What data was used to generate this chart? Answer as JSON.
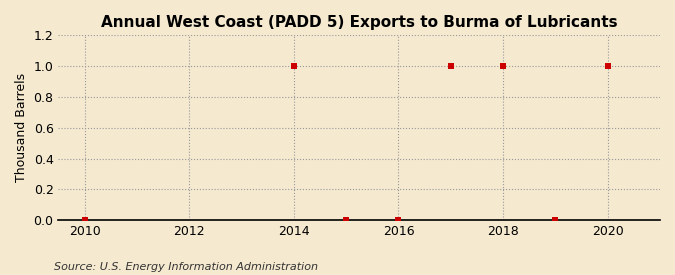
{
  "title": "Annual West Coast (PADD 5) Exports to Burma of Lubricants",
  "ylabel": "Thousand Barrels",
  "source": "Source: U.S. Energy Information Administration",
  "background_color": "#f5e9d0",
  "plot_bg_color": "#f5e9d0",
  "data_points": [
    {
      "year": 2010,
      "value": 0.0
    },
    {
      "year": 2014,
      "value": 1.0
    },
    {
      "year": 2015,
      "value": 0.0
    },
    {
      "year": 2016,
      "value": 0.0
    },
    {
      "year": 2017,
      "value": 1.0
    },
    {
      "year": 2018,
      "value": 1.0
    },
    {
      "year": 2019,
      "value": 0.0
    },
    {
      "year": 2020,
      "value": 1.0
    }
  ],
  "marker_color": "#cc0000",
  "marker_size": 4,
  "xlim": [
    2009.5,
    2021.0
  ],
  "ylim": [
    0.0,
    1.2
  ],
  "xticks": [
    2010,
    2012,
    2014,
    2016,
    2018,
    2020
  ],
  "yticks": [
    0.0,
    0.2,
    0.4,
    0.6,
    0.8,
    1.0,
    1.2
  ],
  "grid_color": "#999999",
  "grid_style": ":",
  "title_fontsize": 11,
  "label_fontsize": 9,
  "tick_fontsize": 9,
  "source_fontsize": 8
}
